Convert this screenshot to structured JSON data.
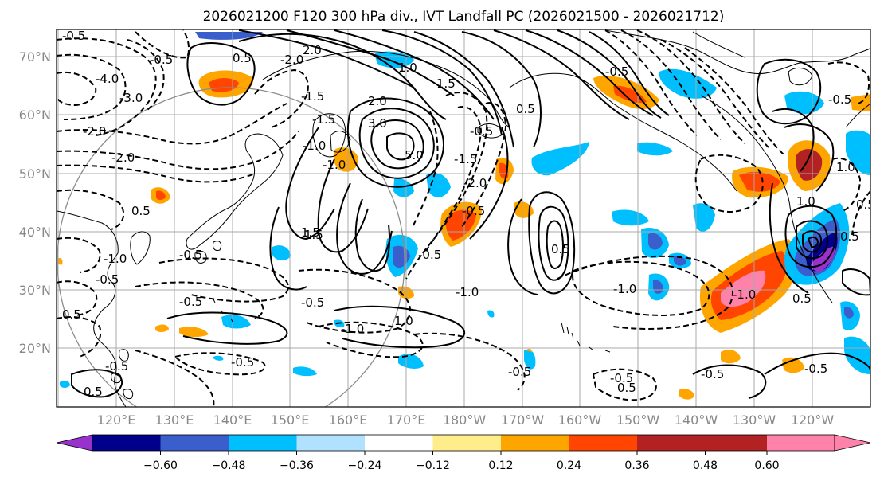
{
  "title": "2026021200 F120 300 hPa div., IVT Landfall PC (2026021500 - 2026021712)",
  "lat_labels": [
    "70°N",
    "60°N",
    "50°N",
    "40°N",
    "30°N",
    "20°N"
  ],
  "lon_labels": [
    "120°E",
    "130°E",
    "140°E",
    "150°E",
    "160°E",
    "170°E",
    "180°W",
    "170°W",
    "160°W",
    "150°W",
    "140°W",
    "130°W",
    "120°W"
  ],
  "colorbar": {
    "colors": [
      "#9932cc",
      "#00008b",
      "#3a5fcd",
      "#00bfff",
      "#b0e2ff",
      "#ffffff",
      "#ffec8b",
      "#ffa500",
      "#ff4500",
      "#b22222",
      "#ff82ab"
    ],
    "tick_labels": [
      "−0.60",
      "−0.48",
      "−0.36",
      "−0.24",
      "−0.12",
      "0.12",
      "0.24",
      "0.36",
      "0.48",
      "0.60"
    ]
  },
  "contour_labels": [
    "-0.5",
    "-4.0",
    "-3.0",
    "-2.0",
    "-2.0",
    "-0.5",
    "-1.5",
    "-1.0",
    "-1.5",
    "-2.0",
    "-1.0",
    "1.5",
    "-1.0",
    "-0.5",
    "0.5",
    "-0.5",
    "-0.5",
    "-0.5",
    "1.5",
    "-0.5",
    "-0.5",
    "-1.0",
    "0.5",
    "-1.0",
    "-0.5",
    "-0.5",
    "1.0",
    "-1.0",
    "-0.5",
    "-1.0",
    "0.5",
    "-0.5",
    "0.5",
    "0.5",
    "0.5",
    "0.5",
    "1.0",
    "1.5",
    "2.0",
    "-0.5",
    "3.0",
    "5.0",
    "2.0",
    "-1.5",
    "0.5",
    "-2.0",
    "-0.5",
    "1.0",
    "-0.5",
    "1.0",
    "0.5",
    "-0.5",
    "-0.5",
    "0.5"
  ]
}
